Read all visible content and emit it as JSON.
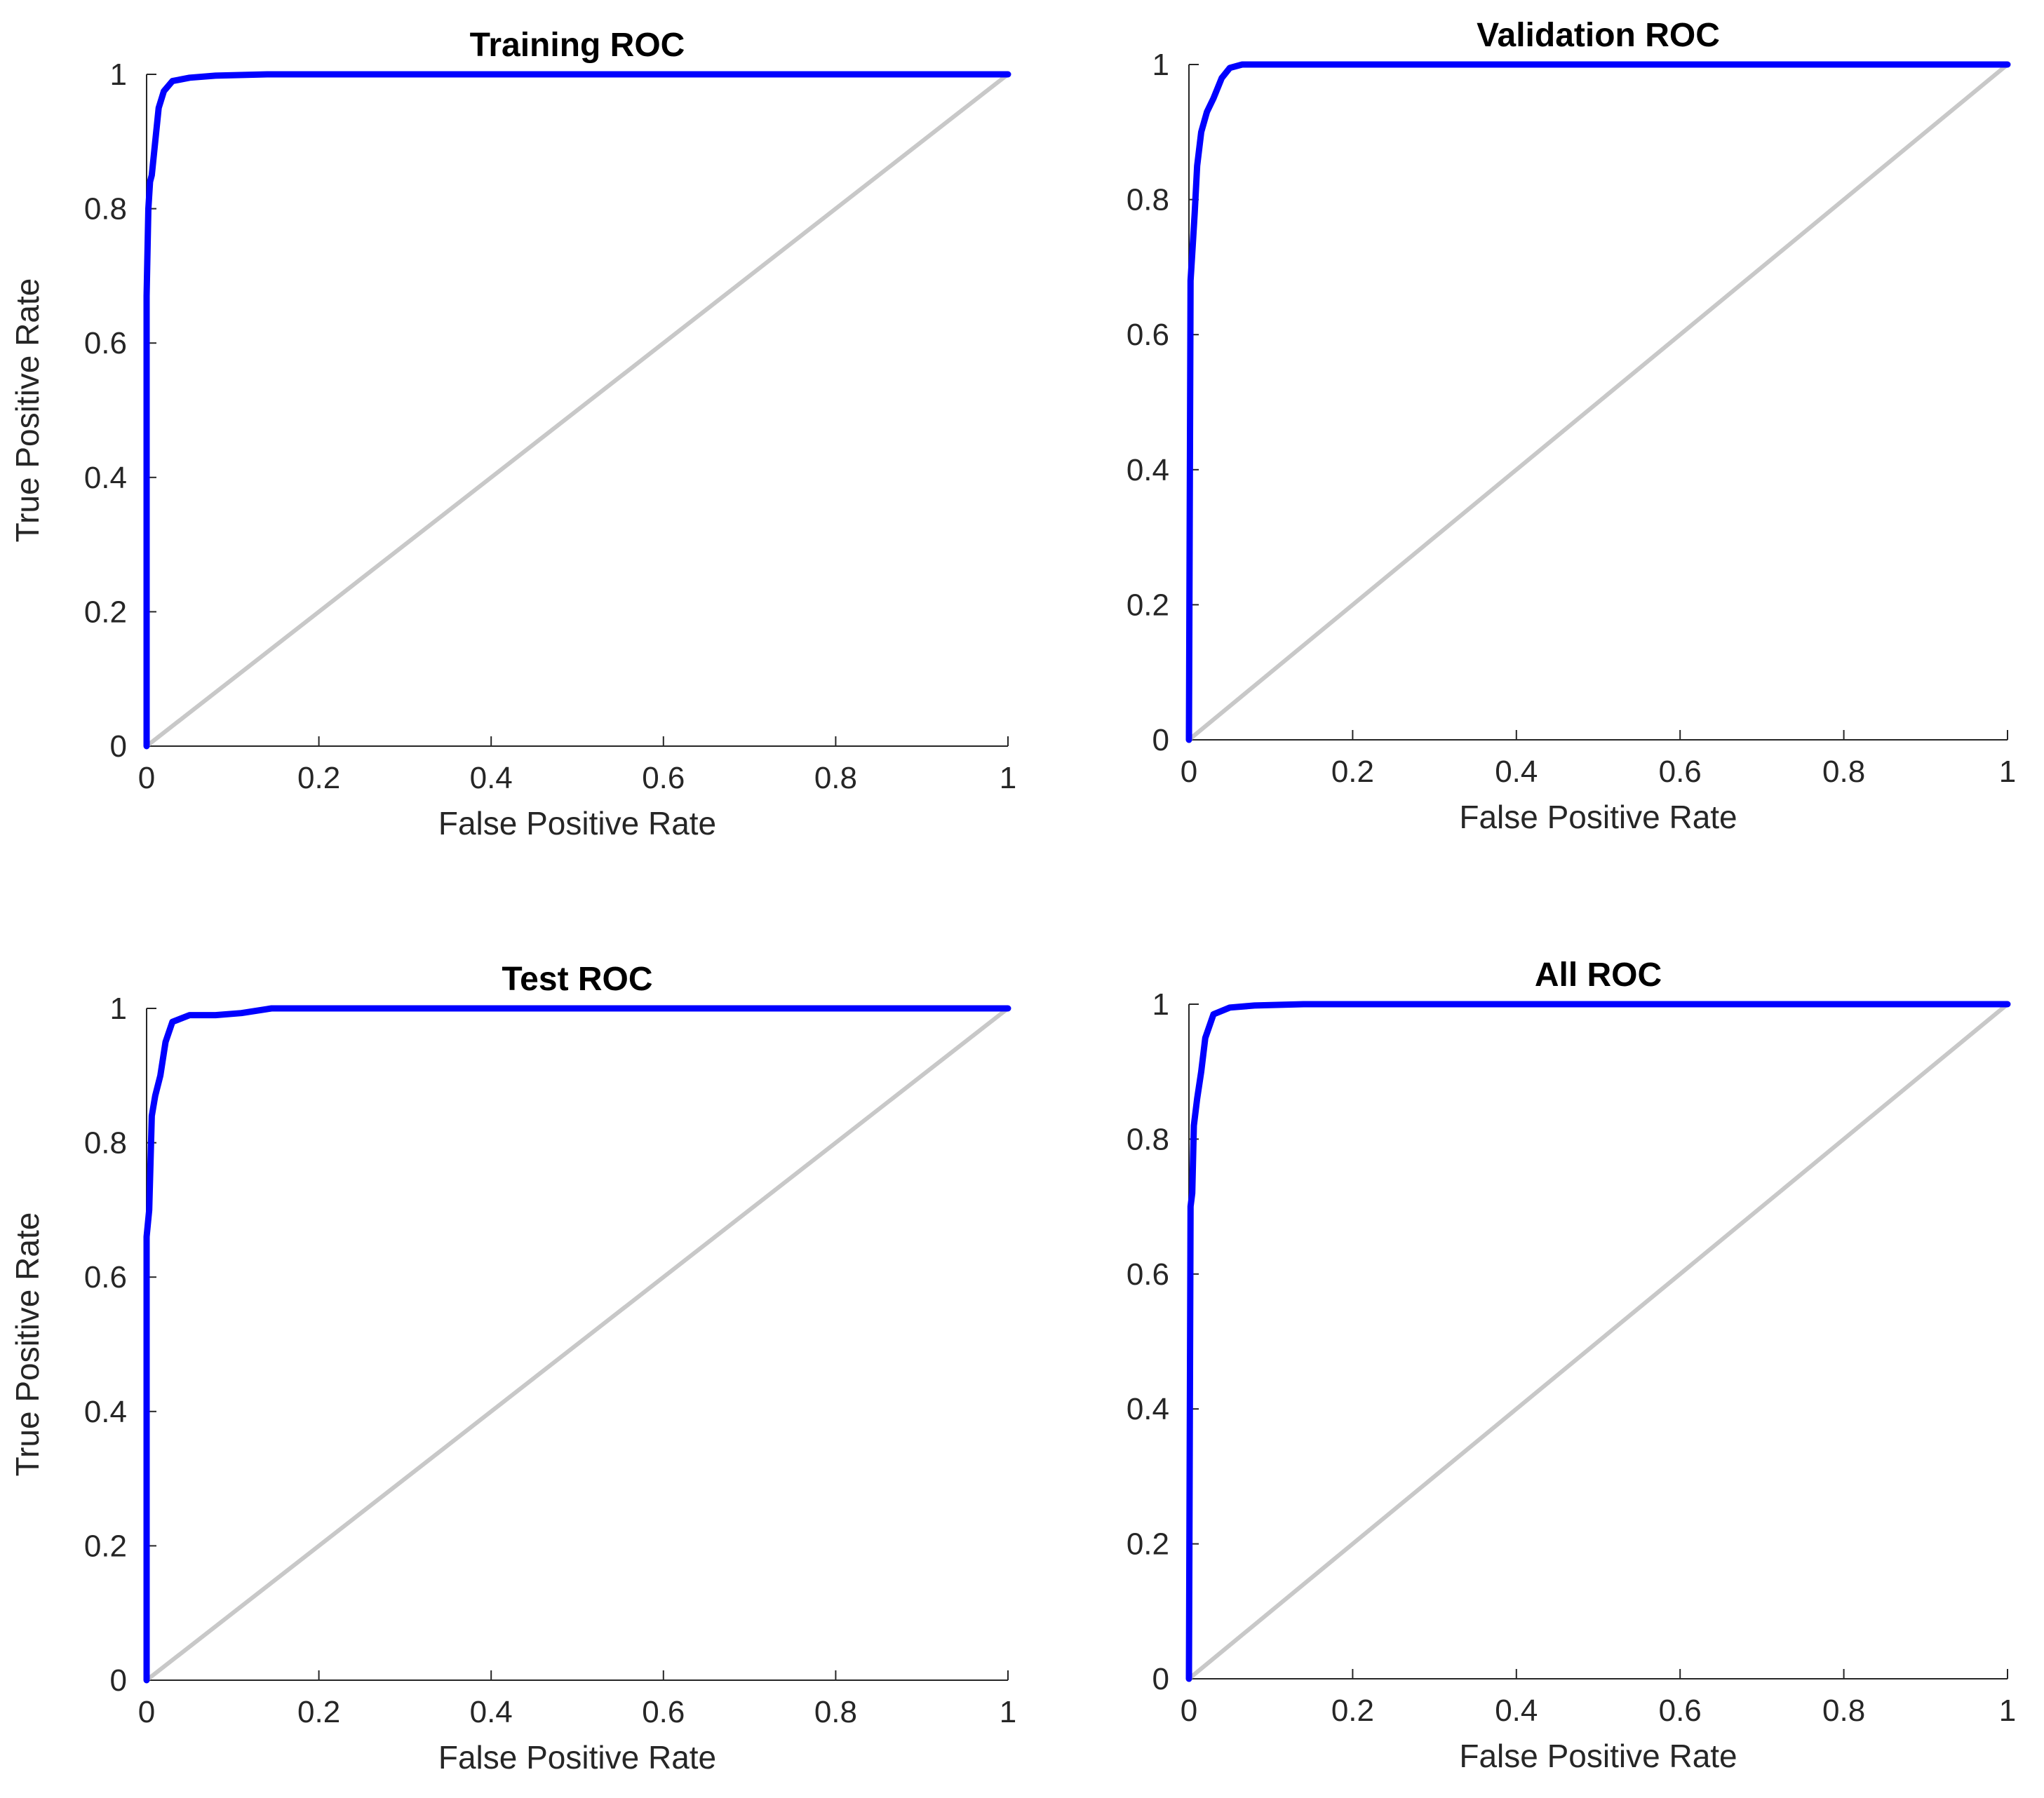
{
  "chart_data": [
    {
      "type": "line",
      "title": "Training ROC",
      "xlabel": "False Positive Rate",
      "ylabel": "True Positive Rate",
      "xlim": [
        0,
        1
      ],
      "ylim": [
        0,
        1
      ],
      "xticks": [
        "0",
        "0.2",
        "0.4",
        "0.6",
        "0.8",
        "1"
      ],
      "yticks": [
        "0",
        "0.2",
        "0.4",
        "0.6",
        "0.8",
        "1"
      ],
      "grid": false,
      "series": [
        {
          "color": "#0000ff",
          "x": [
            0,
            0,
            0.002,
            0.004,
            0.006,
            0.01,
            0.014,
            0.02,
            0.03,
            0.05,
            0.08,
            0.14,
            1
          ],
          "y": [
            0,
            0.67,
            0.8,
            0.84,
            0.85,
            0.9,
            0.95,
            0.975,
            0.99,
            0.995,
            0.998,
            1,
            1
          ]
        },
        {
          "color": "#c8c8c8",
          "x": [
            0,
            1
          ],
          "y": [
            0,
            1
          ]
        }
      ]
    },
    {
      "type": "line",
      "title": "Validation ROC",
      "xlabel": "False Positive Rate",
      "ylabel": "",
      "xlim": [
        0,
        1
      ],
      "ylim": [
        0,
        1
      ],
      "xticks": [
        "0",
        "0.2",
        "0.4",
        "0.6",
        "0.8",
        "1"
      ],
      "yticks": [
        "0",
        "0.2",
        "0.4",
        "0.6",
        "0.8",
        "1"
      ],
      "grid": false,
      "series": [
        {
          "color": "#0000ff",
          "x": [
            0,
            0.002,
            0.004,
            0.007,
            0.01,
            0.015,
            0.022,
            0.03,
            0.04,
            0.05,
            0.065,
            0.1,
            0.18,
            1
          ],
          "y": [
            0,
            0.68,
            0.72,
            0.78,
            0.85,
            0.9,
            0.93,
            0.95,
            0.98,
            0.995,
            1,
            1,
            1,
            1
          ]
        },
        {
          "color": "#c8c8c8",
          "x": [
            0,
            1
          ],
          "y": [
            0,
            1
          ]
        }
      ]
    },
    {
      "type": "line",
      "title": "Test ROC",
      "xlabel": "False Positive Rate",
      "ylabel": "True Positive Rate",
      "xlim": [
        0,
        1
      ],
      "ylim": [
        0,
        1
      ],
      "xticks": [
        "0",
        "0.2",
        "0.4",
        "0.6",
        "0.8",
        "1"
      ],
      "yticks": [
        "0",
        "0.2",
        "0.4",
        "0.6",
        "0.8",
        "1"
      ],
      "grid": false,
      "series": [
        {
          "color": "#0000ff",
          "x": [
            0,
            0,
            0.003,
            0.006,
            0.01,
            0.016,
            0.022,
            0.03,
            0.05,
            0.08,
            0.11,
            0.145,
            1
          ],
          "y": [
            0,
            0.66,
            0.7,
            0.84,
            0.87,
            0.9,
            0.95,
            0.98,
            0.99,
            0.99,
            0.993,
            1,
            1
          ]
        },
        {
          "color": "#c8c8c8",
          "x": [
            0,
            1
          ],
          "y": [
            0,
            1
          ]
        }
      ]
    },
    {
      "type": "line",
      "title": "All ROC",
      "xlabel": "False Positive Rate",
      "ylabel": "",
      "xlim": [
        0,
        1
      ],
      "ylim": [
        0,
        1
      ],
      "xticks": [
        "0",
        "0.2",
        "0.4",
        "0.6",
        "0.8",
        "1"
      ],
      "yticks": [
        "0",
        "0.2",
        "0.4",
        "0.6",
        "0.8",
        "1"
      ],
      "grid": false,
      "series": [
        {
          "color": "#0000ff",
          "x": [
            0,
            0.002,
            0.004,
            0.006,
            0.01,
            0.015,
            0.02,
            0.03,
            0.05,
            0.08,
            0.14,
            1
          ],
          "y": [
            0,
            0.7,
            0.72,
            0.82,
            0.86,
            0.9,
            0.95,
            0.985,
            0.995,
            0.998,
            1,
            1
          ]
        },
        {
          "color": "#c8c8c8",
          "x": [
            0,
            1
          ],
          "y": [
            0,
            1
          ]
        }
      ]
    }
  ]
}
